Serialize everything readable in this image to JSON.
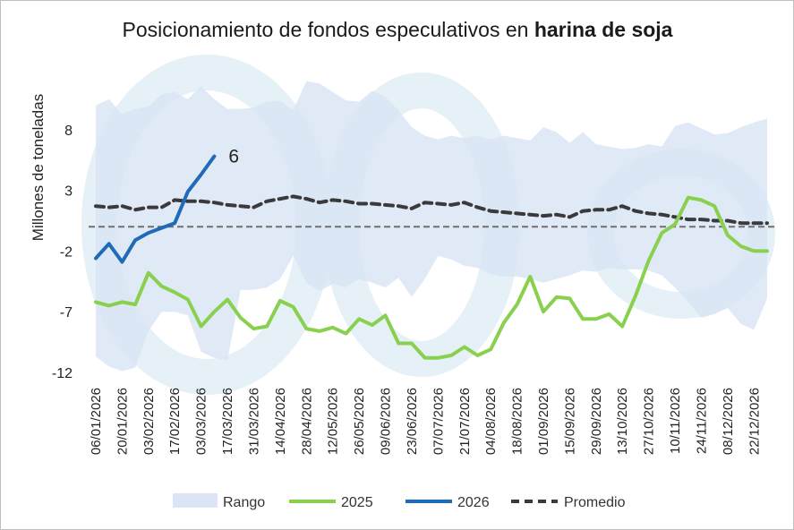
{
  "chart_data": {
    "type": "line",
    "title": {
      "normal": "Posicionamiento de fondos especulativos en ",
      "bold": "harina de soja"
    },
    "ylabel": "Millones de toneladas",
    "xlabel": "",
    "ylim": [
      -12,
      13
    ],
    "yticks": [
      "8",
      "3",
      "-2",
      "-7",
      "-12"
    ],
    "ytick_values": [
      8,
      3,
      -2,
      -7,
      -12
    ],
    "grid": false,
    "legend_position": "bottom",
    "zero_line": 0,
    "x_dates": [
      "06/01/2026",
      "13/01/2026",
      "20/01/2026",
      "27/01/2026",
      "03/02/2026",
      "10/02/2026",
      "17/02/2026",
      "24/02/2026",
      "03/03/2026",
      "10/03/2026",
      "17/03/2026",
      "24/03/2026",
      "31/03/2026",
      "07/04/2026",
      "14/04/2026",
      "21/04/2026",
      "28/04/2026",
      "05/05/2026",
      "12/05/2026",
      "19/05/2026",
      "26/05/2026",
      "02/06/2026",
      "09/06/2026",
      "16/06/2026",
      "23/06/2026",
      "30/06/2026",
      "07/07/2026",
      "14/07/2026",
      "21/07/2026",
      "28/07/2026",
      "04/08/2026",
      "11/08/2026",
      "18/08/2026",
      "25/08/2026",
      "01/09/2026",
      "08/09/2026",
      "15/09/2026",
      "22/09/2026",
      "29/09/2026",
      "06/10/2026",
      "13/10/2026",
      "20/10/2026",
      "27/10/2026",
      "03/11/2026",
      "10/11/2026",
      "17/11/2026",
      "24/11/2026",
      "01/12/2026",
      "08/12/2026",
      "15/12/2026",
      "22/12/2026",
      "29/12/2026"
    ],
    "x_tick_labels": [
      "06/01/2026",
      "20/01/2026",
      "03/02/2026",
      "17/02/2026",
      "03/03/2026",
      "17/03/2026",
      "31/03/2026",
      "14/04/2026",
      "28/04/2026",
      "12/05/2026",
      "26/05/2026",
      "09/06/2026",
      "23/06/2026",
      "07/07/2026",
      "21/07/2026",
      "04/08/2026",
      "18/08/2026",
      "01/09/2026",
      "15/09/2026",
      "29/09/2026",
      "13/10/2026",
      "27/10/2026",
      "10/11/2026",
      "24/11/2026",
      "08/12/2026",
      "22/12/2026"
    ],
    "range_upper": [
      10.0,
      10.5,
      9.3,
      9.7,
      9.9,
      10.9,
      11.1,
      10.5,
      11.6,
      10.5,
      9.7,
      9.7,
      9.8,
      10.3,
      10.4,
      9.6,
      12.0,
      11.8,
      11.1,
      10.4,
      10.3,
      11.2,
      10.7,
      9.6,
      8.2,
      7.5,
      7.2,
      7.5,
      7.3,
      7.5,
      7.2,
      7.5,
      7.3,
      7.1,
      8.2,
      7.8,
      6.9,
      7.8,
      6.8,
      6.6,
      6.4,
      6.5,
      6.8,
      6.6,
      8.3,
      8.6,
      8.1,
      7.6,
      7.7,
      8.2,
      8.6,
      8.9
    ],
    "range_lower": [
      -10.7,
      -11.5,
      -11.9,
      -11.6,
      -8.6,
      -7.0,
      -7.0,
      -7.3,
      -10.3,
      -10.8,
      -11.0,
      -5.2,
      -5.2,
      -5.0,
      -4.3,
      -2.4,
      -4.6,
      -5.3,
      -4.7,
      -5.0,
      -4.3,
      -4.6,
      -5.0,
      -4.2,
      -5.8,
      -4.3,
      -2.4,
      -2.7,
      -3.2,
      -3.4,
      -3.9,
      -4.1,
      -4.1,
      -4.3,
      -4.6,
      -4.3,
      -4.0,
      -3.6,
      -3.7,
      -3.4,
      -3.5,
      -3.5,
      -3.6,
      -4.0,
      -5.0,
      -6.2,
      -7.5,
      -7.2,
      -6.7,
      -8.0,
      -8.5,
      -5.9
    ],
    "series": [
      {
        "name": "2025",
        "color": "#8ad04f",
        "values": [
          -6.2,
          -6.5,
          -6.2,
          -6.4,
          -3.8,
          -4.9,
          -5.4,
          -6.0,
          -8.2,
          -7.0,
          -6.0,
          -7.5,
          -8.4,
          -8.2,
          -6.1,
          -6.6,
          -8.4,
          -8.6,
          -8.3,
          -8.8,
          -7.6,
          -8.1,
          -7.3,
          -9.6,
          -9.6,
          -10.8,
          -10.8,
          -10.6,
          -9.9,
          -10.6,
          -10.1,
          -7.9,
          -6.4,
          -4.1,
          -7.0,
          -5.8,
          -5.9,
          -7.6,
          -7.6,
          -7.2,
          -8.2,
          -5.7,
          -2.8,
          -0.5,
          0.2,
          2.4,
          2.2,
          1.7,
          -0.7,
          -1.6,
          -2.0,
          -2.0
        ]
      },
      {
        "name": "2026",
        "color": "#1f6bb8",
        "values": [
          -2.6,
          -1.4,
          -2.9,
          -1.1,
          -0.5,
          -0.1,
          0.3,
          2.9,
          4.3,
          5.8
        ]
      },
      {
        "name": "Promedio",
        "color": "#3a3a3a",
        "values": [
          1.7,
          1.6,
          1.7,
          1.4,
          1.6,
          1.6,
          2.2,
          2.1,
          2.1,
          2.0,
          1.8,
          1.7,
          1.6,
          2.1,
          2.3,
          2.5,
          2.3,
          2.0,
          2.2,
          2.1,
          1.9,
          1.9,
          1.8,
          1.7,
          1.5,
          2.0,
          1.9,
          1.8,
          2.0,
          1.6,
          1.3,
          1.2,
          1.1,
          1.0,
          0.9,
          1.0,
          0.8,
          1.3,
          1.4,
          1.4,
          1.7,
          1.3,
          1.1,
          1.0,
          0.8,
          0.6,
          0.6,
          0.5,
          0.5,
          0.3,
          0.3,
          0.3
        ]
      }
    ],
    "end_label": "6",
    "legend": [
      "Rango",
      "2025",
      "2026",
      "Promedio"
    ],
    "colors": {
      "range": "#dbe5f5",
      "y2025": "#8ad04f",
      "y2026": "#1f6bb8",
      "promedio": "#3a3a3a",
      "zero_line": "#707070",
      "watermark": "#e5f1f6"
    }
  }
}
